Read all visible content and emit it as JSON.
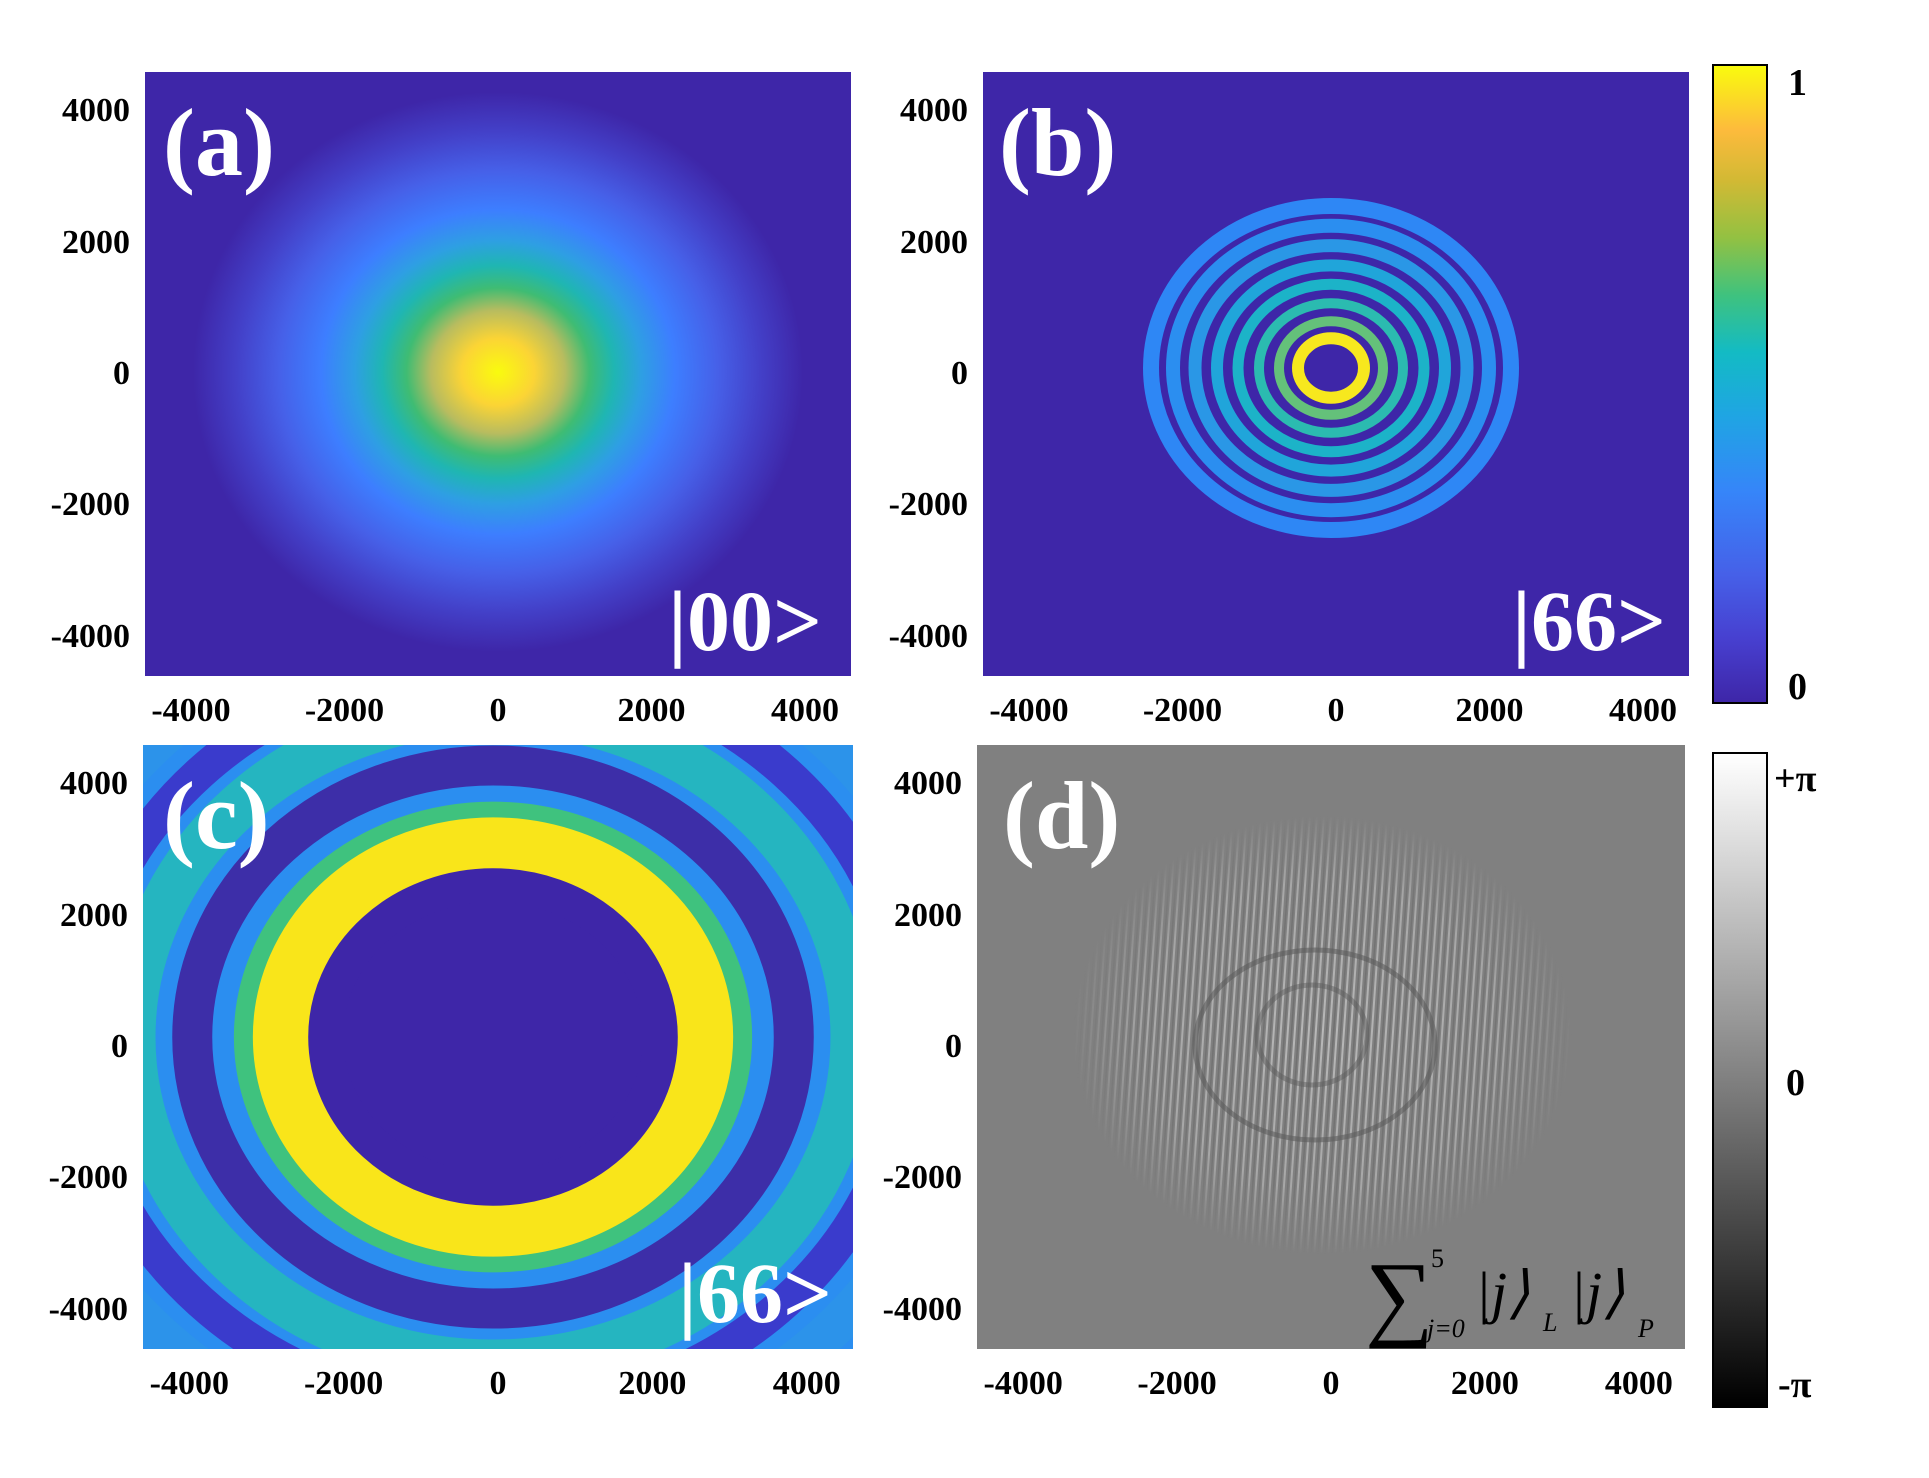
{
  "chart_data": [
    {
      "type": "heatmap",
      "panel_label": "(a)",
      "state_label": "|00>",
      "colormap": "parula",
      "xlim": [
        -4600,
        4600
      ],
      "ylim": [
        -4600,
        4600
      ],
      "xticks": [
        "-4000",
        "-2000",
        "0",
        "2000",
        "4000"
      ],
      "yticks": [
        "4000",
        "2000",
        "0",
        "-2000",
        "-4000"
      ],
      "description_model": {
        "shape": "gaussian",
        "peak": 1.0,
        "width": 1700
      }
    },
    {
      "type": "heatmap",
      "panel_label": "(b)",
      "state_label": "|66>",
      "colormap": "parula",
      "xlim": [
        -4600,
        4600
      ],
      "ylim": [
        -4600,
        4600
      ],
      "xticks": [
        "-4000",
        "-2000",
        "0",
        "2000",
        "4000"
      ],
      "yticks": [
        "4000",
        "2000",
        "0",
        "-2000",
        "-4000"
      ],
      "description_model": {
        "shape": "rings",
        "ring_count": 7,
        "outer_radius": 2600
      }
    },
    {
      "type": "heatmap",
      "panel_label": "(c)",
      "state_label": "|66>",
      "colormap": "parula",
      "xlim": [
        -4600,
        4600
      ],
      "ylim": [
        -4600,
        4600
      ],
      "xticks": [
        "-4000",
        "-2000",
        "0",
        "2000",
        "4000"
      ],
      "yticks": [
        "4000",
        "2000",
        "0",
        "-2000",
        "-4000"
      ],
      "description_model": {
        "shape": "rings",
        "ring_count": 3,
        "zoomed": true
      }
    },
    {
      "type": "heatmap",
      "panel_label": "(d)",
      "state_label": "Σ_{j=0}^{5} |j⟩_L |j⟩_P",
      "colormap": "gray",
      "xlim": [
        -4600,
        4600
      ],
      "ylim": [
        -4600,
        4600
      ],
      "xticks": [
        "-4000",
        "-2000",
        "0",
        "2000",
        "4000"
      ],
      "yticks": [
        "4000",
        "2000",
        "0",
        "-2000",
        "-4000"
      ],
      "description_model": {
        "shape": "phase",
        "range": "[-π, +π]"
      }
    }
  ],
  "colorbars": {
    "amplitude": {
      "max_label": "1",
      "min_label": "0",
      "colormap": "parula"
    },
    "phase": {
      "max_label": "+π",
      "mid_label": "0",
      "min_label": "-π",
      "colormap": "gray"
    }
  },
  "sum_label": {
    "sum": "∑",
    "upper": "5",
    "lower": "j=0",
    "ket1": "|j⟩",
    "sub1": "L",
    "ket2": "|j⟩",
    "sub2": "P"
  }
}
